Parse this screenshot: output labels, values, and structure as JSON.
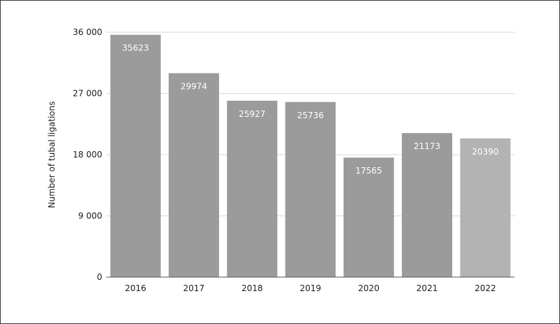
{
  "chart_data": {
    "type": "bar",
    "title": "",
    "xlabel": "",
    "ylabel": "Number of tubal ligations",
    "categories": [
      "2016",
      "2017",
      "2018",
      "2019",
      "2020",
      "2021",
      "2022"
    ],
    "values": [
      35623,
      29974,
      25927,
      25736,
      17565,
      21173,
      20390
    ],
    "data_labels": [
      "35623",
      "29974",
      "25927",
      "25736",
      "17565",
      "21173",
      "20390"
    ],
    "ylim": [
      0,
      36000
    ],
    "yticks": [
      0,
      9000,
      18000,
      27000,
      36000
    ],
    "ytick_labels": [
      "0",
      "9 000",
      "18 000",
      "27 000",
      "36 000"
    ],
    "grid": true,
    "legend": "none",
    "colors": {
      "bar": "#9b9b9b",
      "bar_highlight": "#b3b3b3",
      "highlight_category": "2022",
      "grid": "#d9d9d9",
      "axis": "#555555",
      "label_text": "#ffffff"
    }
  }
}
